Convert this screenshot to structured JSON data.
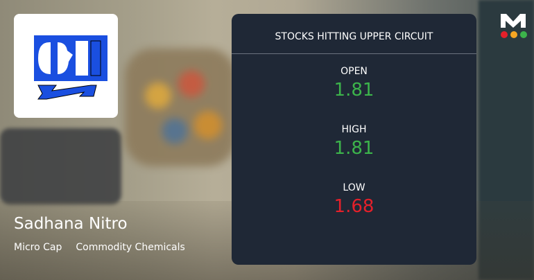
{
  "company": {
    "name": "Sadhana Nitro",
    "cap": "Micro Cap",
    "sector": "Commodity Chemicals",
    "logo_text": "SNC"
  },
  "card": {
    "title": "STOCKS HITTING UPPER CIRCUIT",
    "metrics": [
      {
        "label": "OPEN",
        "value": "1.81",
        "color": "#3cb44b"
      },
      {
        "label": "HIGH",
        "value": "1.81",
        "color": "#3cb44b"
      },
      {
        "label": "LOW",
        "value": "1.68",
        "color": "#e5202a"
      }
    ]
  },
  "brand": {
    "letter": "M",
    "dot_colors": [
      "#e5202a",
      "#f5a623",
      "#3cb44b"
    ]
  }
}
